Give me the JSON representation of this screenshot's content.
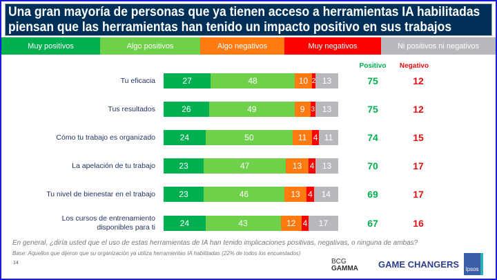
{
  "title": "Una gran mayoría de personas que ya tienen acceso a herramientas IA habilitadas piensan que las herramientas han tenido un impacto positivo en sus trabajos",
  "chart_data": {
    "type": "bar",
    "orientation": "horizontal",
    "stacked": true,
    "categories": [
      "Tu eficacia",
      "Tus resultados",
      "Cómo tu trabajo es organizado",
      "La apelación de tu trabajo",
      "Tu nivel de bienestar en el trabajo",
      "Los cursos de entrenamiento disponibles para ti"
    ],
    "series": [
      {
        "name": "Muy positivos",
        "color": "#00b050",
        "values": [
          27,
          26,
          24,
          23,
          23,
          24
        ]
      },
      {
        "name": "Algo positivos",
        "color": "#6fd14a",
        "values": [
          48,
          49,
          50,
          47,
          46,
          43
        ]
      },
      {
        "name": "Algo negativos",
        "color": "#ff7a10",
        "values": [
          10,
          9,
          11,
          13,
          13,
          12
        ]
      },
      {
        "name": "Muy negativos",
        "color": "#ff0000",
        "values": [
          2,
          3,
          4,
          4,
          4,
          4
        ]
      },
      {
        "name": "Ni positivos ni negativos",
        "color": "#b8b8bc",
        "values": [
          13,
          13,
          11,
          13,
          14,
          17
        ]
      }
    ],
    "summary": {
      "positivo_label": "Positivo",
      "negativo_label": "Negativo",
      "positivo": [
        75,
        75,
        74,
        70,
        69,
        67
      ],
      "negativo": [
        12,
        12,
        15,
        17,
        17,
        16
      ],
      "positivo_color": "#00b050",
      "negativo_color": "#e01010"
    }
  },
  "footer": {
    "question": "En general, ¿diría usted que el uso de estas herramientas de IA han tenido implicaciones positivas, negativas, o ninguna de ambas?",
    "base": "Base: Aquellos que dijeron que su organización ya utiliza herramientas IA habilitadas (22% de todos los encuestados)",
    "page": "14",
    "logo_bcg": "BCG GAMMA",
    "logo_gc": "GAME CHANGERS",
    "logo_ipsos": "Ipsos"
  }
}
